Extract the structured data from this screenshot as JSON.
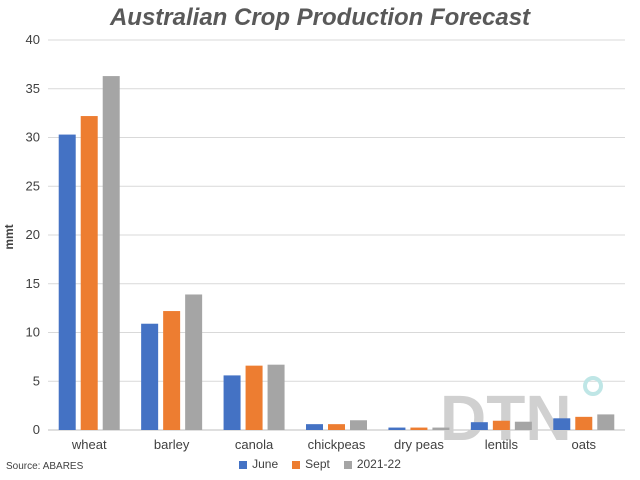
{
  "chart_data": {
    "type": "bar",
    "title": "Australian Crop Production Forecast",
    "ylabel": "mmt",
    "xlabel": "",
    "ylim": [
      0,
      40
    ],
    "yticks": [
      0,
      5,
      10,
      15,
      20,
      25,
      30,
      35,
      40
    ],
    "grid": true,
    "legend_position": "bottom",
    "categories": [
      "wheat",
      "barley",
      "canola",
      "chickpeas",
      "dry peas",
      "lentils",
      "oats"
    ],
    "series": [
      {
        "name": "June",
        "color": "#4472C4",
        "values": [
          30.3,
          10.9,
          5.6,
          0.6,
          0.25,
          0.8,
          1.2
        ]
      },
      {
        "name": "Sept",
        "color": "#ED7D31",
        "values": [
          32.2,
          12.2,
          6.6,
          0.6,
          0.25,
          0.95,
          1.35
        ]
      },
      {
        "name": "2021-22",
        "color": "#A5A5A5",
        "values": [
          36.3,
          13.9,
          6.7,
          1.0,
          0.25,
          0.85,
          1.6
        ]
      }
    ]
  },
  "source": "Source: ABARES",
  "watermark": {
    "text": "DTN",
    "color": "#d0d0d0",
    "accent": "#bfe6e6"
  }
}
